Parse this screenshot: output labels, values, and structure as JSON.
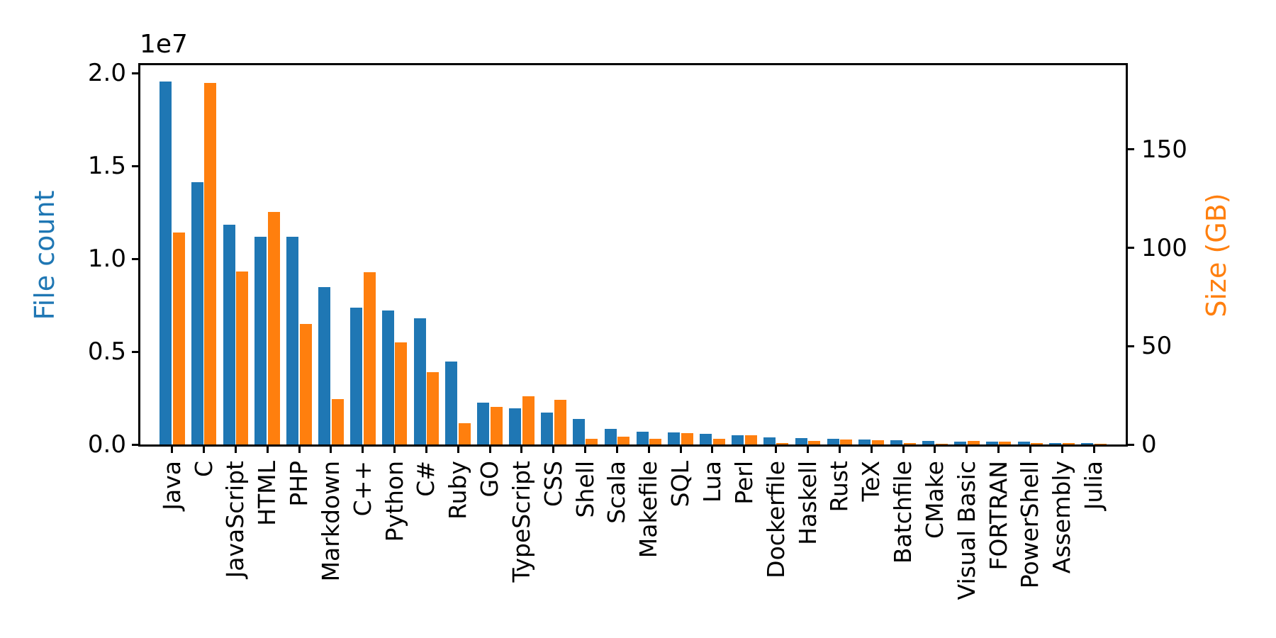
{
  "figure": {
    "title": "",
    "background": "#ffffff",
    "spine_color": "#000000"
  },
  "chart_data": {
    "type": "bar",
    "title": "",
    "xlabel": "",
    "grid": false,
    "legend": null,
    "categories": [
      "Java",
      "C",
      "JavaScript",
      "HTML",
      "PHP",
      "Markdown",
      "C++",
      "Python",
      "C#",
      "Ruby",
      "GO",
      "TypeScript",
      "CSS",
      "Shell",
      "Scala",
      "Makefile",
      "SQL",
      "Lua",
      "Perl",
      "Dockerfile",
      "Haskell",
      "Rust",
      "TeX",
      "Batchfile",
      "CMake",
      "Visual Basic",
      "FORTRAN",
      "PowerShell",
      "Assembly",
      "Julia"
    ],
    "series": [
      {
        "name": "File count",
        "axis": "left",
        "color": "#1f77b4",
        "values": [
          19548190,
          14143113,
          11839883,
          11178557,
          11177610,
          8464626,
          7380520,
          7226626,
          6811652,
          4473331,
          2265436,
          1940406,
          1734406,
          1385648,
          835755,
          679430,
          656671,
          578554,
          497949,
          366505,
          340380,
          323431,
          251015,
          236945,
          175282,
          155652,
          142038,
          136846,
          82905,
          58317
        ]
      },
      {
        "name": "Size (GB)",
        "axis": "right",
        "color": "#ff7f0e",
        "values": [
          107.7,
          183.83,
          87.82,
          118.12,
          61.41,
          23.09,
          87.73,
          52.03,
          36.83,
          10.95,
          19.28,
          24.59,
          22.67,
          3.01,
          3.87,
          2.92,
          5.67,
          2.81,
          4.7,
          0.71,
          1.85,
          2.68,
          2.15,
          0.7,
          0.54,
          1.91,
          1.62,
          0.69,
          0.78,
          0.29
        ]
      }
    ],
    "left_axis": {
      "label": "File count",
      "color": "#1f77b4",
      "scale_note": "1e7",
      "ticks": [
        0,
        5000000,
        10000000,
        15000000,
        20000000
      ],
      "tick_labels": [
        "0.0",
        "0.5",
        "1.0",
        "1.5",
        "2.0"
      ],
      "ylim": [
        0,
        20435000
      ]
    },
    "right_axis": {
      "label": "Size (GB)",
      "color": "#ff7f0e",
      "ticks": [
        0,
        50,
        100,
        150
      ],
      "tick_labels": [
        "0",
        "50",
        "100",
        "150"
      ],
      "ylim": [
        0,
        192.9
      ]
    }
  }
}
